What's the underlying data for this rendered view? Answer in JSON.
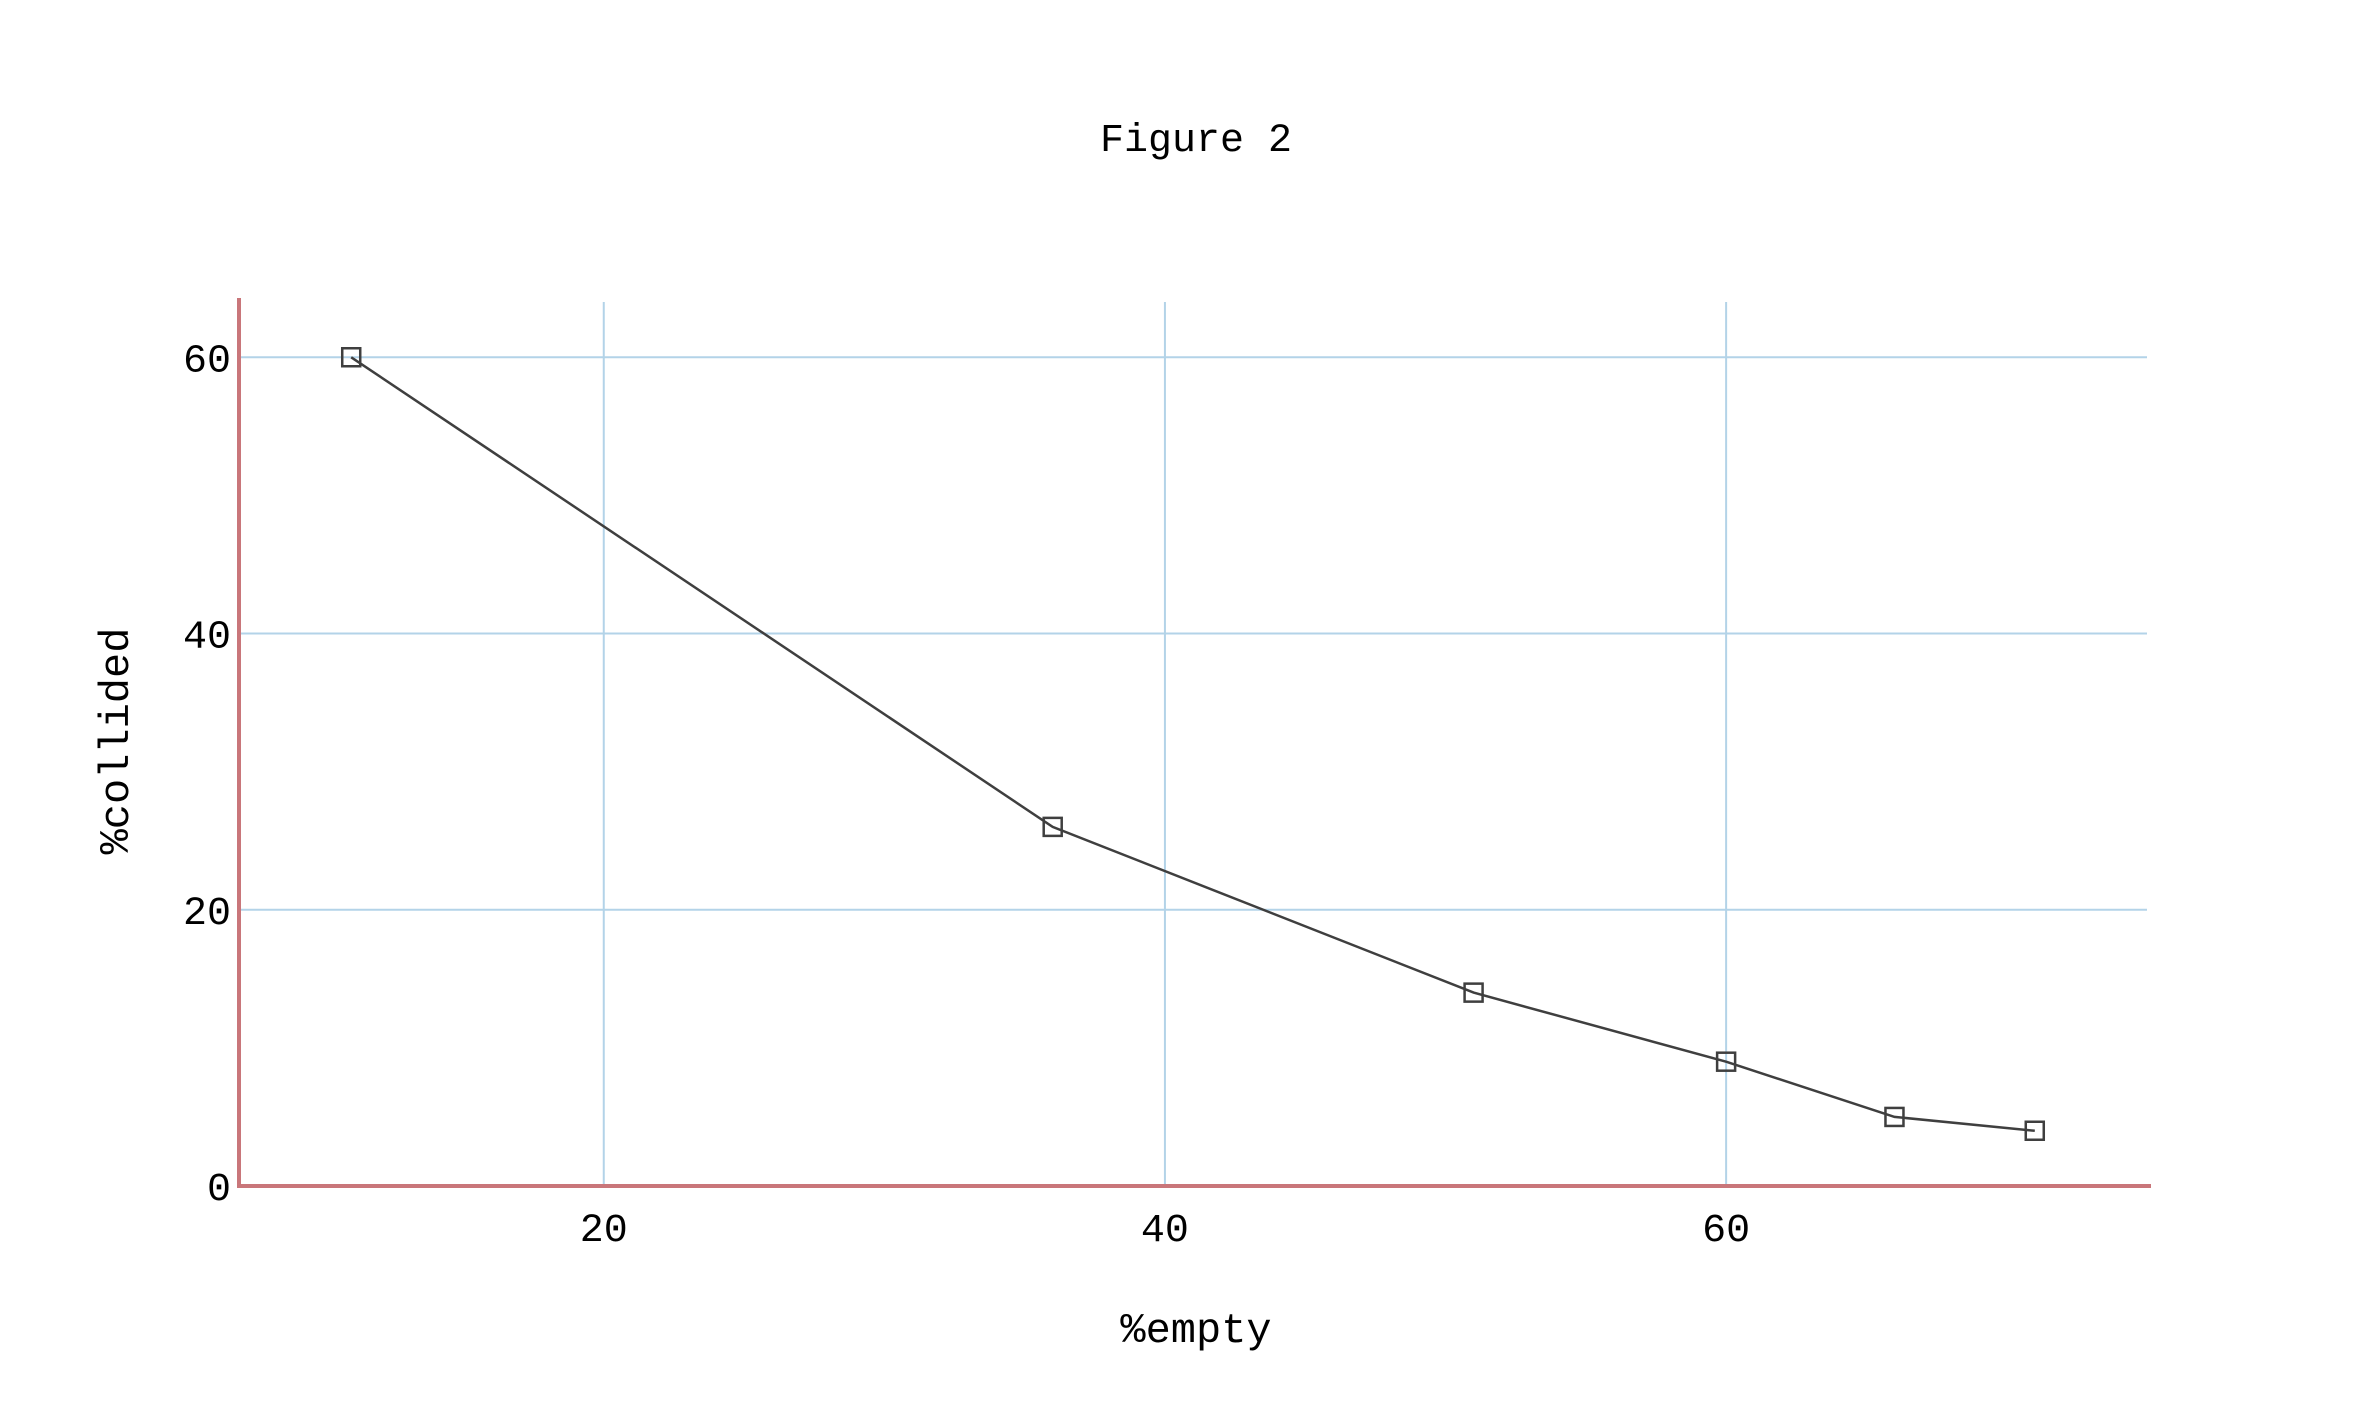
{
  "chart_data": {
    "type": "line",
    "title": "Figure 2",
    "xlabel": "%empty",
    "ylabel": "%collided",
    "xlim": [
      7,
      75
    ],
    "ylim": [
      0,
      64
    ],
    "x_ticks": [
      20,
      40,
      60
    ],
    "y_ticks": [
      0,
      20,
      40,
      60
    ],
    "grid": true,
    "marker": "square",
    "colors": {
      "line": "#3f3f3f",
      "grid": "#b3d3e8",
      "axis": "#c9767a"
    },
    "series": [
      {
        "x": [
          11,
          36,
          51,
          60,
          66,
          71
        ],
        "y": [
          60,
          26,
          14,
          9,
          5,
          4
        ]
      }
    ]
  }
}
